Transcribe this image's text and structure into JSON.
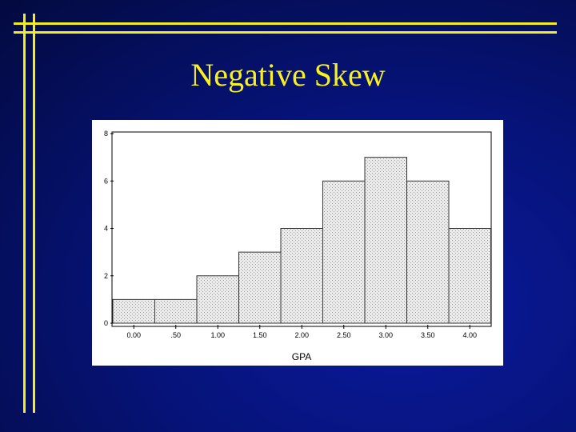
{
  "slide": {
    "title": "Negative Skew"
  },
  "colors": {
    "background": "#06137a",
    "accent_rules": "#f2ee1a",
    "title": "#f7f21c",
    "bar_fill": "#e8e8e8",
    "bar_stroke": "#333333"
  },
  "chart_data": {
    "type": "bar",
    "title": "",
    "xlabel": "GPA",
    "ylabel": "",
    "categories": [
      "0.00",
      ".50",
      "1.00",
      "1.50",
      "2.00",
      "2.50",
      "3.00",
      "3.50",
      "4.00"
    ],
    "values": [
      1,
      1,
      2,
      3,
      4,
      6,
      7,
      6,
      4
    ],
    "yticks": [
      "0",
      "2",
      "4",
      "6",
      "8"
    ],
    "ylim": [
      0,
      8
    ],
    "grid": false,
    "legend": "none"
  }
}
